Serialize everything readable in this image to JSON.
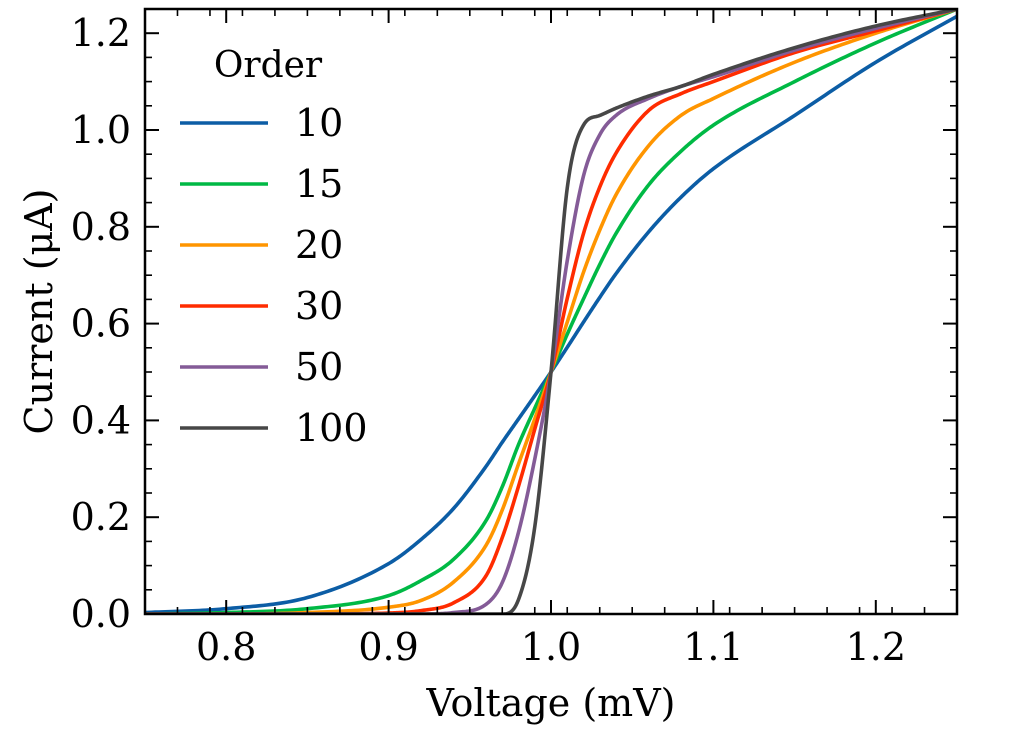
{
  "chart_data": {
    "type": "line",
    "title": "",
    "xlabel": "Voltage (mV)",
    "ylabel": "Current (μA)",
    "xlim": [
      0.75,
      1.25
    ],
    "ylim": [
      0.0,
      1.25
    ],
    "x_ticks": [
      0.8,
      0.9,
      1.0,
      1.1,
      1.2
    ],
    "x_tick_labels": [
      "0.8",
      "0.9",
      "1.0",
      "1.1",
      "1.2"
    ],
    "y_ticks": [
      0.0,
      0.2,
      0.4,
      0.6,
      0.8,
      1.0,
      1.2
    ],
    "y_tick_labels": [
      "0.0",
      "0.2",
      "0.4",
      "0.6",
      "0.8",
      "1.0",
      "1.2"
    ],
    "x_minor_step": 0.02,
    "y_minor_step": 0.05,
    "grid": false,
    "legend": {
      "title": "Order",
      "placement": "top-left"
    },
    "x": [
      0.75,
      0.8,
      0.85,
      0.9,
      0.92,
      0.94,
      0.96,
      0.97,
      0.98,
      0.99,
      1.0,
      1.01,
      1.02,
      1.03,
      1.04,
      1.06,
      1.08,
      1.1,
      1.15,
      1.2,
      1.25
    ],
    "series": [
      {
        "name": "10",
        "color": "#0C5DA5",
        "values": [
          0.003,
          0.011,
          0.034,
          0.104,
          0.154,
          0.218,
          0.305,
          0.355,
          0.403,
          0.451,
          0.5,
          0.551,
          0.603,
          0.654,
          0.703,
          0.789,
          0.861,
          0.92,
          1.03,
          1.14,
          1.235
        ]
      },
      {
        "name": "15",
        "color": "#00B945",
        "values": [
          0.0,
          0.003,
          0.011,
          0.038,
          0.069,
          0.113,
          0.193,
          0.263,
          0.35,
          0.425,
          0.5,
          0.578,
          0.651,
          0.722,
          0.786,
          0.886,
          0.956,
          1.01,
          1.1,
          1.18,
          1.25
        ]
      },
      {
        "name": "20",
        "color": "#FF9500",
        "values": [
          0.0,
          0.0,
          0.003,
          0.014,
          0.028,
          0.066,
          0.142,
          0.215,
          0.31,
          0.403,
          0.5,
          0.603,
          0.706,
          0.793,
          0.866,
          0.967,
          1.03,
          1.065,
          1.14,
          1.2,
          1.25
        ]
      },
      {
        "name": "30",
        "color": "#FF2C00",
        "values": [
          0.0,
          0.0,
          0.0,
          0.002,
          0.007,
          0.023,
          0.079,
          0.158,
          0.264,
          0.382,
          0.5,
          0.652,
          0.786,
          0.882,
          0.952,
          1.04,
          1.075,
          1.1,
          1.16,
          1.205,
          1.25
        ]
      },
      {
        "name": "50",
        "color": "#845B97",
        "values": [
          0.0,
          0.0,
          0.0,
          0.0,
          0.0,
          0.003,
          0.02,
          0.065,
          0.169,
          0.32,
          0.5,
          0.73,
          0.905,
          0.99,
          1.03,
          1.065,
          1.09,
          1.11,
          1.165,
          1.21,
          1.25
        ]
      },
      {
        "name": "100",
        "color": "#474747",
        "values": [
          0.0,
          0.0,
          0.0,
          0.0,
          0.0,
          0.0,
          0.0,
          0.0,
          0.03,
          0.18,
          0.5,
          0.88,
          1.01,
          1.03,
          1.045,
          1.07,
          1.09,
          1.115,
          1.17,
          1.215,
          1.25
        ]
      }
    ]
  }
}
